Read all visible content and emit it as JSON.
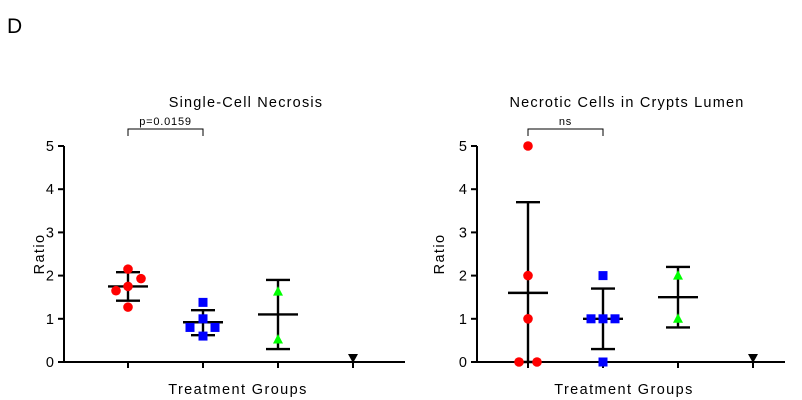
{
  "panel_letter": "D",
  "colors": {
    "group1": "#ff0000",
    "group2": "#0000ff",
    "group3": "#00ff00",
    "group4": "#000000",
    "axis": "#000000",
    "errorbar": "#000000"
  },
  "chart_data": [
    {
      "type": "scatter",
      "title": "Single-Cell Necrosis",
      "xlabel": "Treatment Groups",
      "ylabel": "Ratio",
      "ylim": [
        0,
        5
      ],
      "yticks": [
        "0",
        "1",
        "2",
        "3",
        "4",
        "5"
      ],
      "grid": false,
      "legend": "none",
      "groups": [
        {
          "marker": "circle",
          "color": "#ff0000",
          "points": [
            2.15,
            1.93,
            1.75,
            1.65,
            1.27
          ],
          "mean": 1.75,
          "upper": 2.08,
          "lower": 1.42
        },
        {
          "marker": "square",
          "color": "#0000ff",
          "points": [
            1.38,
            1.0,
            0.8,
            0.8,
            0.6
          ],
          "mean": 0.92,
          "upper": 1.2,
          "lower": 0.62
        },
        {
          "marker": "triangle-up",
          "color": "#00ff00",
          "points": [
            1.63,
            0.52
          ],
          "mean": 1.1,
          "upper": 1.9,
          "lower": 0.3
        },
        {
          "marker": "triangle-down",
          "color": "#000000",
          "points": [
            0.05
          ]
        }
      ],
      "annotation": {
        "text": "p=0.0159",
        "from_group": 1,
        "to_group": 2
      }
    },
    {
      "type": "scatter",
      "title": "Necrotic Cells in Crypts Lumen",
      "xlabel": "Treatment Groups",
      "ylabel": "Ratio",
      "ylim": [
        0,
        5
      ],
      "yticks": [
        "0",
        "1",
        "2",
        "3",
        "4",
        "5"
      ],
      "grid": false,
      "legend": "none",
      "groups": [
        {
          "marker": "circle",
          "color": "#ff0000",
          "points": [
            5,
            2,
            1,
            0,
            0
          ],
          "mean": 1.6,
          "upper": 3.7,
          "lower": 0
        },
        {
          "marker": "square",
          "color": "#0000ff",
          "points": [
            2,
            1,
            1,
            1,
            0
          ],
          "mean": 1.0,
          "upper": 1.7,
          "lower": 0.3
        },
        {
          "marker": "triangle-up",
          "color": "#00ff00",
          "points": [
            2,
            1
          ],
          "mean": 1.5,
          "upper": 2.2,
          "lower": 0.8
        },
        {
          "marker": "triangle-down",
          "color": "#000000",
          "points": [
            0
          ]
        }
      ],
      "annotation": {
        "text": "ns",
        "from_group": 1,
        "to_group": 2
      }
    }
  ]
}
